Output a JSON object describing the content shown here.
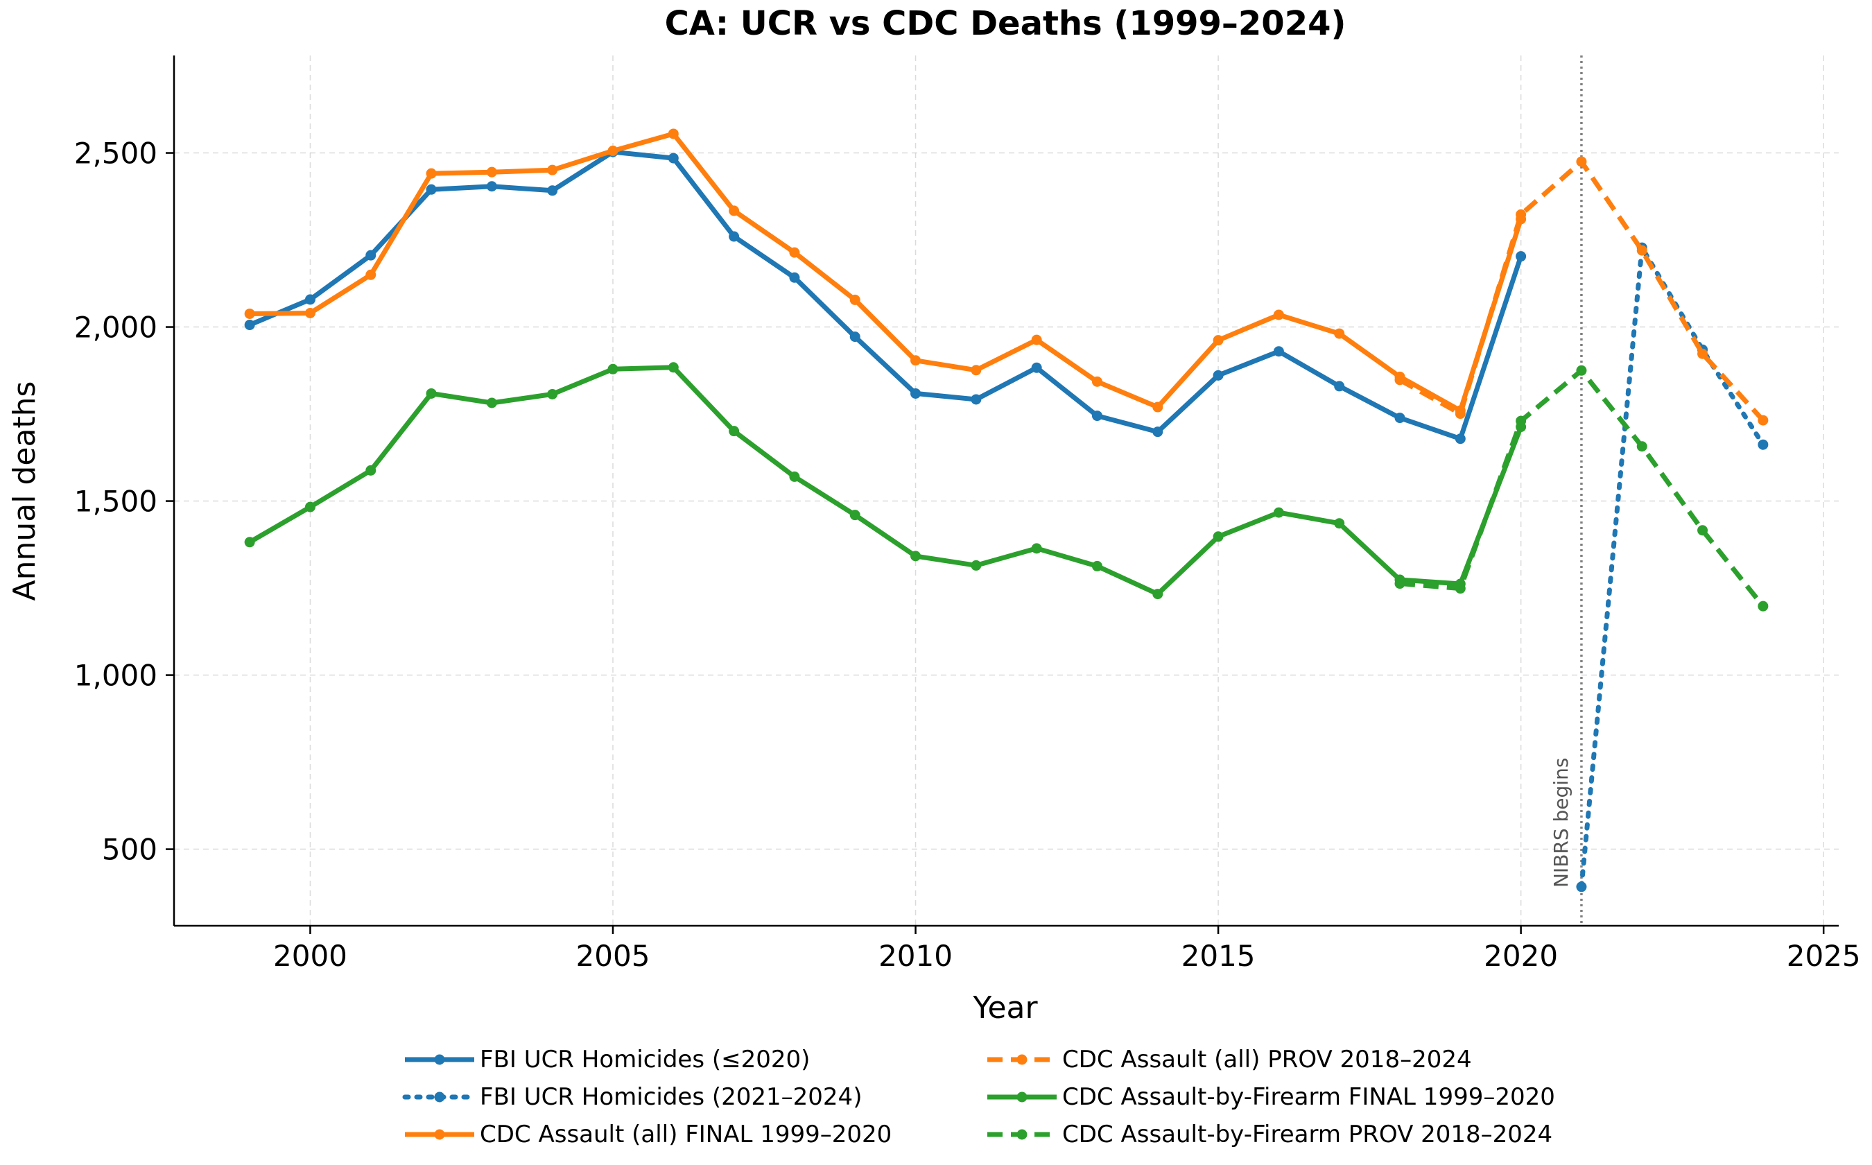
{
  "chart_data": {
    "type": "line",
    "title": "CA: UCR vs CDC Deaths (1999–2024)",
    "xlabel": "Year",
    "ylabel": "Annual deaths",
    "xlim": [
      1997.75,
      2025.25
    ],
    "ylim": [
      280,
      2780
    ],
    "xticks": [
      2000,
      2005,
      2010,
      2015,
      2020,
      2025
    ],
    "xtick_labels": [
      "2000",
      "2005",
      "2010",
      "2015",
      "2020",
      "2025"
    ],
    "yticks": [
      500,
      1000,
      1500,
      2000,
      2500
    ],
    "ytick_labels": [
      "500",
      "1,000",
      "1,500",
      "2,000",
      "2,500"
    ],
    "grid": true,
    "legend_position": "bottom-center",
    "annotations": [
      {
        "text": "NIBRS begins",
        "x": 2021
      }
    ],
    "series": [
      {
        "name": "FBI UCR Homicides (≤2020)",
        "color": "#1f77b4",
        "style": "solid",
        "x": [
          1999,
          2000,
          2001,
          2002,
          2003,
          2004,
          2005,
          2006,
          2007,
          2008,
          2009,
          2010,
          2011,
          2012,
          2013,
          2014,
          2015,
          2016,
          2017,
          2018,
          2019,
          2020
        ],
        "y": [
          2006,
          2079,
          2206,
          2395,
          2404,
          2392,
          2503,
          2485,
          2260,
          2142,
          1972,
          1809,
          1792,
          1883,
          1745,
          1699,
          1861,
          1930,
          1830,
          1739,
          1679,
          2203
        ]
      },
      {
        "name": "FBI UCR Homicides (2021–2024)",
        "color": "#1f77b4",
        "style": "dotted",
        "x": [
          2021,
          2022,
          2023,
          2024
        ],
        "y": [
          392,
          2228,
          1935,
          1662
        ]
      },
      {
        "name": "CDC Assault (all) FINAL 1999–2020",
        "color": "#ff7f0e",
        "style": "solid",
        "x": [
          1999,
          2000,
          2001,
          2002,
          2003,
          2004,
          2005,
          2006,
          2007,
          2008,
          2009,
          2010,
          2011,
          2012,
          2013,
          2014,
          2015,
          2016,
          2017,
          2018,
          2019,
          2020
        ],
        "y": [
          2038,
          2040,
          2150,
          2441,
          2445,
          2451,
          2506,
          2555,
          2334,
          2214,
          2078,
          1904,
          1876,
          1963,
          1843,
          1770,
          1962,
          2035,
          1981,
          1857,
          1760,
          2310
        ]
      },
      {
        "name": "CDC Assault (all) PROV 2018–2024",
        "color": "#ff7f0e",
        "style": "dashed",
        "x": [
          2018,
          2019,
          2020,
          2021,
          2022,
          2023,
          2024
        ],
        "y": [
          1848,
          1751,
          2323,
          2475,
          2220,
          1923,
          1732
        ]
      },
      {
        "name": "CDC Assault-by-Firearm FINAL 1999–2020",
        "color": "#2ca02c",
        "style": "solid",
        "x": [
          1999,
          2000,
          2001,
          2002,
          2003,
          2004,
          2005,
          2006,
          2007,
          2008,
          2009,
          2010,
          2011,
          2012,
          2013,
          2014,
          2015,
          2016,
          2017,
          2018,
          2019,
          2020
        ],
        "y": [
          1382,
          1483,
          1588,
          1809,
          1782,
          1807,
          1879,
          1884,
          1701,
          1570,
          1460,
          1342,
          1315,
          1364,
          1313,
          1233,
          1398,
          1467,
          1436,
          1274,
          1262,
          1713
        ]
      },
      {
        "name": "CDC Assault-by-Firearm PROV 2018–2024",
        "color": "#2ca02c",
        "style": "dashed",
        "x": [
          2018,
          2019,
          2020,
          2021,
          2022,
          2023,
          2024
        ],
        "y": [
          1263,
          1249,
          1730,
          1875,
          1657,
          1416,
          1198
        ]
      }
    ]
  }
}
